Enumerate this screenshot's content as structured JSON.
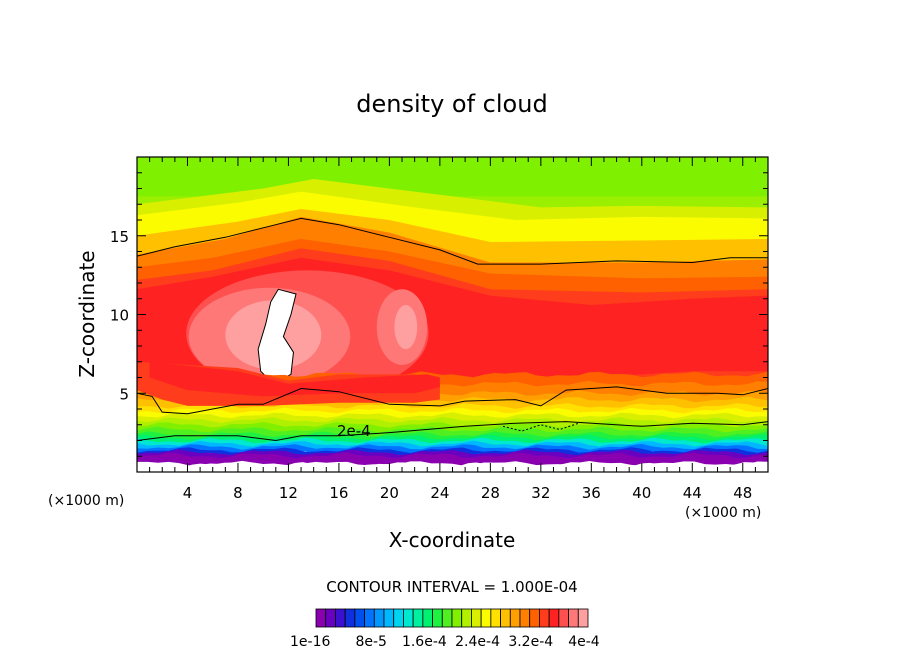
{
  "chart_data": {
    "type": "heatmap",
    "title": "density of cloud",
    "xlabel": "X-coordinate",
    "ylabel": "Z-coordinate",
    "x_unit_left": "(×1000 m)",
    "x_unit_right": "(×1000 m)",
    "xlim": [
      0,
      50
    ],
    "ylim": [
      0,
      20
    ],
    "x_ticks": [
      4,
      8,
      12,
      16,
      20,
      24,
      28,
      32,
      36,
      40,
      44,
      48
    ],
    "y_ticks": [
      5,
      10,
      15
    ],
    "contour_label": "2e-4",
    "contour_interval_text": "CONTOUR INTERVAL = 1.000E-04",
    "colorbar_labels": [
      "1e-16",
      "8e-5",
      "1.6e-4",
      "2.4e-4",
      "3.2e-4",
      "4e-4"
    ],
    "colorbar_colors": [
      "#8a00b0",
      "#6a00c0",
      "#3c10d0",
      "#1030e0",
      "#0050f0",
      "#0074ff",
      "#0098ff",
      "#00b8ff",
      "#00d4f0",
      "#00e8d0",
      "#00f0a0",
      "#00f070",
      "#20f040",
      "#50f020",
      "#80f000",
      "#b0f000",
      "#d8f000",
      "#fcfc00",
      "#ffe000",
      "#ffc000",
      "#ffa000",
      "#ff8000",
      "#ff6000",
      "#ff3c1c",
      "#ff2222",
      "#ff5050",
      "#ff7878",
      "#ffa0a0"
    ],
    "white_patch_color": "#ffffff"
  }
}
